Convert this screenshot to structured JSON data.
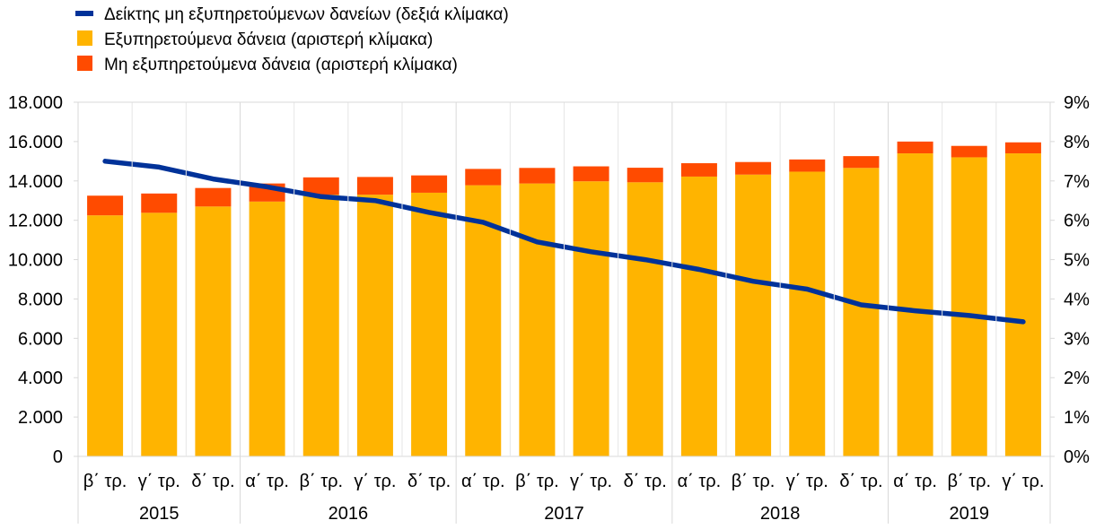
{
  "chart_data": {
    "type": "bar",
    "legend": [
      {
        "key": "npl_ratio",
        "label": "Δείκτης μη εξυπηρετούμενων δανείων (δεξιά κλίμακα)",
        "color": "#003299",
        "marker": "line"
      },
      {
        "key": "performing",
        "label": "Εξυπηρετούμενα δάνεια (αριστερή κλίμακα)",
        "color": "#FFB400",
        "marker": "square"
      },
      {
        "key": "npl",
        "label": "Μη εξυπηρετούμενα δάνεια (αριστερή κλίμακα)",
        "color": "#FF4B00",
        "marker": "square"
      }
    ],
    "categories": [
      "β΄ τρ.",
      "γ΄ τρ.",
      "δ΄ τρ.",
      "α΄ τρ.",
      "β΄ τρ.",
      "γ΄ τρ.",
      "δ΄ τρ.",
      "α΄ τρ.",
      "β΄ τρ.",
      "γ΄ τρ.",
      "δ΄ τρ.",
      "α΄ τρ.",
      "β΄ τρ.",
      "γ΄ τρ.",
      "δ΄ τρ.",
      "α΄ τρ.",
      "β΄ τρ.",
      "γ΄ τρ."
    ],
    "years": [
      {
        "label": "2015",
        "count": 3
      },
      {
        "label": "2016",
        "count": 4
      },
      {
        "label": "2017",
        "count": 4
      },
      {
        "label": "2018",
        "count": 4
      },
      {
        "label": "2019",
        "count": 3
      }
    ],
    "series": [
      {
        "name": "Εξυπηρετούμενα δάνεια (αριστερή κλίμακα)",
        "axis": "left",
        "type": "bar",
        "color": "#FFB400",
        "values": [
          12250,
          12380,
          12700,
          12950,
          13300,
          13300,
          13400,
          13780,
          13870,
          13980,
          13930,
          14220,
          14320,
          14470,
          14660,
          15400,
          15200,
          15400
        ]
      },
      {
        "name": "Μη εξυπηρετούμενα δάνεια (αριστερή κλίμακα)",
        "axis": "left",
        "type": "bar",
        "color": "#FF4B00",
        "values": [
          1000,
          980,
          940,
          920,
          880,
          900,
          880,
          830,
          790,
          760,
          740,
          680,
          640,
          620,
          600,
          600,
          580,
          560
        ]
      },
      {
        "name": "Δείκτης μη εξυπηρετούμενων δανείων (δεξιά κλίμακα)",
        "axis": "right",
        "type": "line",
        "color": "#003299",
        "values": [
          7.5,
          7.35,
          7.05,
          6.85,
          6.6,
          6.5,
          6.2,
          5.95,
          5.45,
          5.2,
          5.0,
          4.75,
          4.45,
          4.25,
          3.85,
          3.7,
          3.58,
          3.42
        ]
      }
    ],
    "y_left": {
      "min": 0,
      "max": 18000,
      "step": 2000,
      "tick_labels": [
        "0",
        "2.000",
        "4.000",
        "6.000",
        "8.000",
        "10.000",
        "12.000",
        "14.000",
        "16.000",
        "18.000"
      ]
    },
    "y_right": {
      "min": 0,
      "max": 9,
      "step": 1,
      "tick_labels": [
        "0%",
        "1%",
        "2%",
        "3%",
        "4%",
        "5%",
        "6%",
        "7%",
        "8%",
        "9%"
      ]
    },
    "grid": false,
    "legend_position": "top-left"
  }
}
